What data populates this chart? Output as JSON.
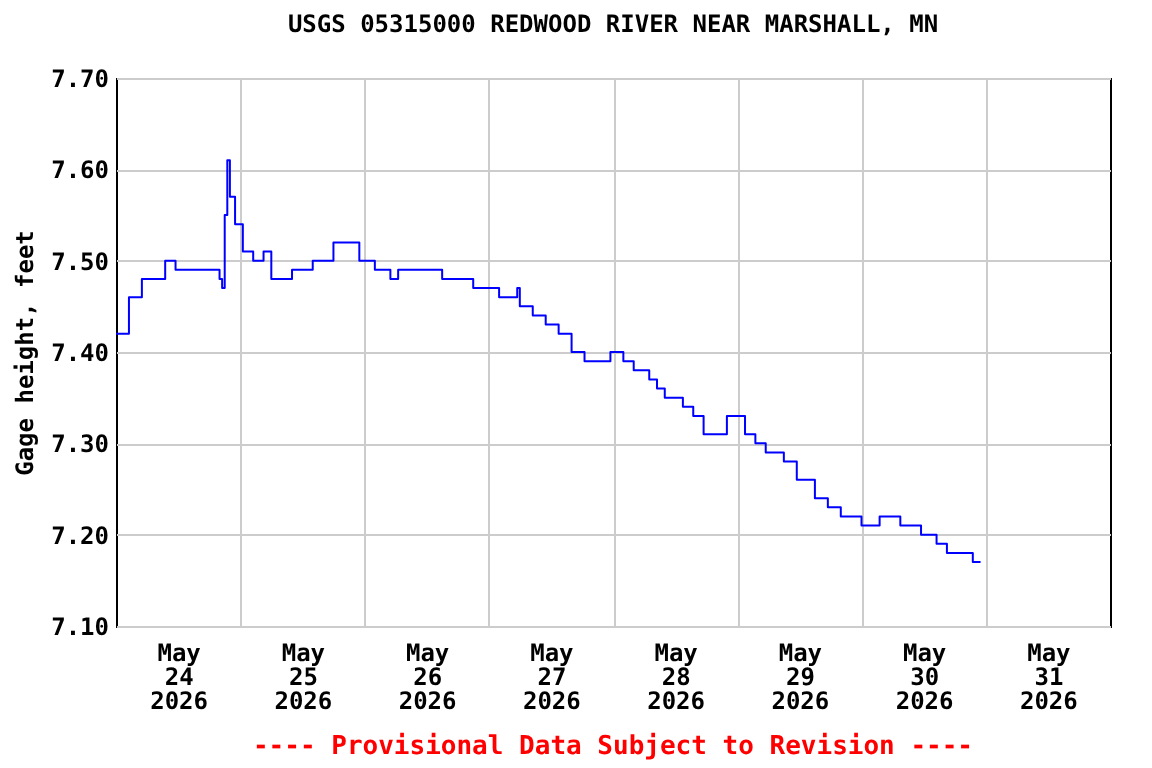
{
  "chart_data": {
    "type": "step",
    "title": "USGS 05315000 REDWOOD RIVER NEAR MARSHALL, MN",
    "ylabel": "Gage height, feet",
    "annotations": [
      "---- Provisional Data Subject to Revision ----"
    ],
    "x": [
      "2026-05-24T00:00",
      "2026-05-24T02:30",
      "2026-05-24T05:00",
      "2026-05-24T09:30",
      "2026-05-24T11:30",
      "2026-05-24T20:00",
      "2026-05-24T20:30",
      "2026-05-24T21:00",
      "2026-05-24T21:30",
      "2026-05-24T22:00",
      "2026-05-24T23:00",
      "2026-05-25T00:30",
      "2026-05-25T02:30",
      "2026-05-25T04:30",
      "2026-05-25T06:00",
      "2026-05-25T10:00",
      "2026-05-25T14:00",
      "2026-05-25T18:00",
      "2026-05-25T21:00",
      "2026-05-25T23:00",
      "2026-05-26T02:00",
      "2026-05-26T05:00",
      "2026-05-26T06:30",
      "2026-05-26T14:30",
      "2026-05-26T15:00",
      "2026-05-26T21:00",
      "2026-05-27T02:00",
      "2026-05-27T05:30",
      "2026-05-27T06:00",
      "2026-05-27T08:30",
      "2026-05-27T11:00",
      "2026-05-27T13:30",
      "2026-05-27T16:00",
      "2026-05-27T18:30",
      "2026-05-27T23:30",
      "2026-05-28T02:00",
      "2026-05-28T04:00",
      "2026-05-28T07:00",
      "2026-05-28T08:30",
      "2026-05-28T10:00",
      "2026-05-28T13:30",
      "2026-05-28T15:30",
      "2026-05-28T17:30",
      "2026-05-28T22:00",
      "2026-05-29T01:30",
      "2026-05-29T03:30",
      "2026-05-29T05:30",
      "2026-05-29T09:00",
      "2026-05-29T11:30",
      "2026-05-29T15:00",
      "2026-05-29T17:30",
      "2026-05-29T20:00",
      "2026-05-30T00:00",
      "2026-05-30T03:30",
      "2026-05-30T07:30",
      "2026-05-30T11:30",
      "2026-05-30T14:30",
      "2026-05-30T16:30",
      "2026-05-30T21:30",
      "2026-05-30T23:00"
    ],
    "series": [
      {
        "color": "#0000ff",
        "values": [
          7.42,
          7.46,
          7.48,
          7.5,
          7.49,
          7.48,
          7.47,
          7.55,
          7.61,
          7.57,
          7.54,
          7.51,
          7.5,
          7.51,
          7.48,
          7.49,
          7.5,
          7.52,
          7.52,
          7.5,
          7.49,
          7.48,
          7.49,
          7.49,
          7.48,
          7.47,
          7.46,
          7.47,
          7.45,
          7.44,
          7.43,
          7.42,
          7.4,
          7.39,
          7.4,
          7.39,
          7.38,
          7.37,
          7.36,
          7.35,
          7.34,
          7.33,
          7.31,
          7.33,
          7.31,
          7.3,
          7.29,
          7.28,
          7.26,
          7.24,
          7.23,
          7.22,
          7.21,
          7.22,
          7.21,
          7.2,
          7.19,
          7.18,
          7.17,
          7.17
        ]
      }
    ],
    "xlim": [
      "2026-05-24T00:00",
      "2026-06-01T00:00"
    ],
    "xticks": [
      {
        "value": "2026-05-24T12:00",
        "label": "May\n24\n2026"
      },
      {
        "value": "2026-05-25T00:00",
        "label": null
      },
      {
        "value": "2026-05-25T12:00",
        "label": "May\n25\n2026"
      },
      {
        "value": "2026-05-26T00:00",
        "label": null
      },
      {
        "value": "2026-05-26T12:00",
        "label": "May\n26\n2026"
      },
      {
        "value": "2026-05-27T00:00",
        "label": null
      },
      {
        "value": "2026-05-27T12:00",
        "label": "May\n27\n2026"
      },
      {
        "value": "2026-05-28T00:00",
        "label": null
      },
      {
        "value": "2026-05-28T12:00",
        "label": "May\n28\n2026"
      },
      {
        "value": "2026-05-29T00:00",
        "label": null
      },
      {
        "value": "2026-05-29T12:00",
        "label": "May\n29\n2026"
      },
      {
        "value": "2026-05-30T00:00",
        "label": null
      },
      {
        "value": "2026-05-30T12:00",
        "label": "May\n30\n2026"
      },
      {
        "value": "2026-05-31T00:00",
        "label": null
      },
      {
        "value": "2026-05-31T12:00",
        "label": "May\n31\n2026"
      }
    ],
    "ylim": [
      7.1,
      7.7
    ],
    "yticks": [
      {
        "value": 7.1,
        "label": "7.10"
      },
      {
        "value": 7.2,
        "label": "7.20"
      },
      {
        "value": 7.3,
        "label": "7.30"
      },
      {
        "value": 7.4,
        "label": "7.40"
      },
      {
        "value": 7.5,
        "label": "7.50"
      },
      {
        "value": 7.6,
        "label": "7.60"
      },
      {
        "value": 7.7,
        "label": "7.70"
      }
    ],
    "grid": true
  }
}
